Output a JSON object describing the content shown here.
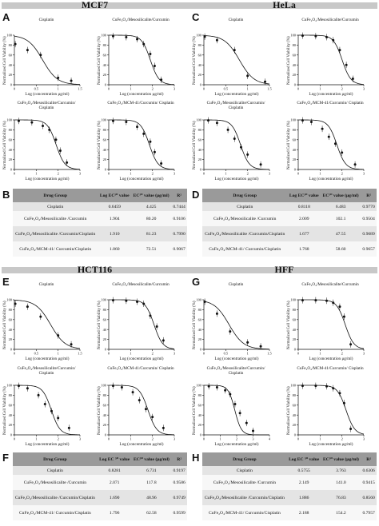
{
  "sections": [
    {
      "name": "MCF7",
      "letters": [
        "A",
        "B"
      ]
    },
    {
      "name": "HeLa",
      "letters": [
        "C",
        "D"
      ]
    },
    {
      "name": "HCT116",
      "letters": [
        "E",
        "F"
      ]
    },
    {
      "name": "HFF",
      "letters": [
        "G",
        "H"
      ]
    }
  ],
  "axis": {
    "ylabel": "Normalized Cell Viability (%)",
    "xlabel": "Log (concentration μg/ml)"
  },
  "tables": [
    {
      "headers": [
        "Drug Group",
        "Log EC⁵⁰ value",
        "EC⁵⁰ value (μg/ml)",
        "R²"
      ],
      "rows": [
        [
          "Cisplatin",
          "0.6459",
          "4.425",
          "0.7444"
        ],
        [
          "CuFe₂O₄/Mesosilicalite /Curcumin",
          "1.904",
          "80.20",
          "0.9106"
        ],
        [
          "CuFe₂O₄/Mesosilicalite /Curcumin/Cisplatin",
          "1.910",
          "81.23",
          "0.7990"
        ],
        [
          "CuFe₂O₄/MCM-41/ Curcumin/Cisplatin",
          "1.860",
          "72.51",
          "0.9067"
        ]
      ]
    },
    {
      "headers": [
        "Drug Group",
        "Log EC⁵⁰ value",
        "EC⁵⁰ value (μg/ml)",
        "R²"
      ],
      "rows": [
        [
          "Cisplatin",
          "0.8118",
          "6.483",
          "0.9770"
        ],
        [
          "CuFe₂O₄/Mesosilicalite /Curcumin",
          "2.009",
          "102.1",
          "0.9504"
        ],
        [
          "CuFe₂O₄/Mesosilicalite /Curcumin/Cisplatin",
          "1.677",
          "47.55",
          "0.9689"
        ],
        [
          "CuFe₂O₄/MCM-41/ Curcumin/Cisplatin",
          "1.768",
          "58.60",
          "0.9657"
        ]
      ]
    },
    {
      "headers": [
        "Drug Group",
        "Log EC ⁵⁰ value",
        "EC⁵⁰ value (μg/ml)",
        "R²"
      ],
      "rows": [
        [
          "Cisplatin",
          "0.8281",
          "6.731",
          "0.9197"
        ],
        [
          "CuFe₂O₄/Mesosilicalite /Curcumin",
          "2.071",
          "117.8",
          "0.9586"
        ],
        [
          "CuFe₂O₄/Mesosilicalite /Curcumin/Cisplatin",
          "1.690",
          "48.96",
          "0.9749"
        ],
        [
          "CuFe₂O₄/MCM-41/ Curcumin/Cisplatin",
          "1.796",
          "62.58",
          "0.9599"
        ]
      ]
    },
    {
      "headers": [
        "Drug Group",
        "Log EC ⁵⁰ value",
        "EC⁵⁰ value (μg/ml)",
        "R²"
      ],
      "rows": [
        [
          "Cisplatin",
          "0.5755",
          "3.763",
          "0.6306"
        ],
        [
          "CuFe₂O₄/Mesosilicalite /Curcumin",
          "2.149",
          "141.0",
          "0.9415"
        ],
        [
          "CuFe₂O₄/Mesosilicalite /Curcumin/Cisplatin",
          "1.886",
          "76.83",
          "0.8560"
        ],
        [
          "CuFe₂O₄/MCM-41/ Curcumin/Cisplatin",
          "2.188",
          "154.2",
          "0.7957"
        ]
      ]
    }
  ],
  "chart_data": [
    {
      "type": "scatter",
      "cell_line": "MCF7",
      "title": "Cisplatin",
      "log_ec50": 0.6459,
      "xlabel": "Log (concentration μg/ml)",
      "ylabel": "Normalized Cell Viability (%)",
      "xlim": [
        0,
        1.5
      ],
      "ylim": [
        0,
        100
      ],
      "xticks": [
        "0",
        "0.5",
        "1",
        "1.5"
      ],
      "yticks": [
        "0",
        "20",
        "40",
        "60",
        "80",
        "100"
      ],
      "x": [
        0.02,
        0.3,
        0.6,
        1.0,
        1.3
      ],
      "y": [
        82,
        70,
        60,
        14,
        8
      ]
    },
    {
      "type": "scatter",
      "cell_line": "MCF7",
      "title": "CuFe₂O₄/Mesosilicalite/Curcumin",
      "log_ec50": 1.904,
      "xlabel": "Log (concentration μg/ml)",
      "ylabel": "Normalized Cell Viability (%)",
      "xlim": [
        0,
        3
      ],
      "ylim": [
        0,
        100
      ],
      "xticks": [
        "0",
        "1",
        "2",
        "3"
      ],
      "yticks": [
        "0",
        "20",
        "40",
        "60",
        "80",
        "100"
      ],
      "x": [
        0.2,
        0.8,
        1.3,
        1.6,
        1.9,
        2.1,
        2.4
      ],
      "y": [
        98,
        96,
        92,
        82,
        62,
        38,
        10
      ]
    },
    {
      "type": "scatter",
      "cell_line": "MCF7",
      "title": "CuFe₂O₄/Mesosilicalite/Curcumin/ Cisplatin",
      "log_ec50": 1.91,
      "xlabel": "Log (concentration μg/ml)",
      "ylabel": "Normalized Cell Viability (%)",
      "xlim": [
        0,
        3
      ],
      "ylim": [
        0,
        100
      ],
      "xticks": [
        "0",
        "1",
        "2",
        "3"
      ],
      "yticks": [
        "0",
        "20",
        "40",
        "60",
        "80",
        "100"
      ],
      "x": [
        0.2,
        0.8,
        1.3,
        1.6,
        1.9,
        2.1,
        2.4
      ],
      "y": [
        98,
        95,
        88,
        80,
        60,
        38,
        14
      ]
    },
    {
      "type": "scatter",
      "cell_line": "MCF7",
      "title": "CuFe₂O₄/MCM-41/Curcumin/ Cisplatin",
      "log_ec50": 1.86,
      "xlabel": "Log (concentration μg/ml)",
      "ylabel": "Normalized Cell Viability (%)",
      "xlim": [
        0,
        3
      ],
      "ylim": [
        0,
        100
      ],
      "xticks": [
        "0",
        "1",
        "2",
        "3"
      ],
      "yticks": [
        "0",
        "20",
        "40",
        "60",
        "80",
        "100"
      ],
      "x": [
        0.2,
        0.8,
        1.3,
        1.6,
        1.9,
        2.1,
        2.4
      ],
      "y": [
        98,
        96,
        86,
        72,
        56,
        35,
        12
      ]
    },
    {
      "type": "scatter",
      "cell_line": "HeLa",
      "title": "Cisplatin",
      "log_ec50": 0.8118,
      "xlabel": "Log (concentration μg/ml)",
      "ylabel": "Normalized Cell Viability (%)",
      "xlim": [
        0,
        1.5
      ],
      "ylim": [
        0,
        100
      ],
      "xticks": [
        "0",
        "0.5",
        "1",
        "1.5"
      ],
      "yticks": [
        "0",
        "20",
        "40",
        "60",
        "80",
        "100"
      ],
      "x": [
        0.02,
        0.3,
        0.7,
        1.0,
        1.4
      ],
      "y": [
        97,
        90,
        70,
        18,
        6
      ]
    },
    {
      "type": "scatter",
      "cell_line": "HeLa",
      "title": "CuFe₂O₄/Mesosilicalite/Curcumin",
      "log_ec50": 2.009,
      "xlabel": "Log (concentration μg/ml)",
      "ylabel": "Normalized Cell Viability (%)",
      "xlim": [
        0,
        3
      ],
      "ylim": [
        0,
        100
      ],
      "xticks": [
        "0",
        "1",
        "2",
        "3"
      ],
      "yticks": [
        "0",
        "20",
        "40",
        "60",
        "80",
        "100"
      ],
      "x": [
        0.2,
        0.8,
        1.3,
        1.6,
        1.9,
        2.2,
        2.5
      ],
      "y": [
        99,
        98,
        96,
        90,
        70,
        40,
        12
      ]
    },
    {
      "type": "scatter",
      "cell_line": "HeLa",
      "title": "CuFe₂O₄/Mesosilicalite/Curcumin/ Cisplatin",
      "log_ec50": 1.677,
      "xlabel": "Log (concentration μg/ml)",
      "ylabel": "Normalized Cell Viability (%)",
      "xlim": [
        0,
        3
      ],
      "ylim": [
        0,
        100
      ],
      "xticks": [
        "0",
        "1",
        "2",
        "3"
      ],
      "yticks": [
        "0",
        "20",
        "40",
        "60",
        "80",
        "100"
      ],
      "x": [
        0.2,
        0.6,
        1.1,
        1.4,
        1.7,
        2.0,
        2.6
      ],
      "y": [
        99,
        94,
        80,
        62,
        45,
        30,
        10
      ]
    },
    {
      "type": "scatter",
      "cell_line": "HeLa",
      "title": "CuFe₂O₄/MCM-41/Curcumin/ Cisplatin",
      "log_ec50": 1.768,
      "xlabel": "Log (concentration μg/ml)",
      "ylabel": "Normalized Cell Viability (%)",
      "xlim": [
        0,
        3
      ],
      "ylim": [
        0,
        100
      ],
      "xticks": [
        "0",
        "1",
        "2",
        "3"
      ],
      "yticks": [
        "0",
        "20",
        "40",
        "60",
        "80",
        "100"
      ],
      "x": [
        0.2,
        0.6,
        1.1,
        1.4,
        1.7,
        2.0,
        2.6
      ],
      "y": [
        99,
        96,
        82,
        66,
        52,
        34,
        10
      ]
    },
    {
      "type": "scatter",
      "cell_line": "HCT116",
      "title": "Cisplatin",
      "log_ec50": 0.8281,
      "xlabel": "Log (concentration μg/ml)",
      "ylabel": "Normalized Cell Viability (%)",
      "xlim": [
        0,
        1.5
      ],
      "ylim": [
        0,
        100
      ],
      "xticks": [
        "0",
        "0.5",
        "1",
        "1.5"
      ],
      "yticks": [
        "0",
        "20",
        "40",
        "60",
        "80",
        "100"
      ],
      "x": [
        0.02,
        0.3,
        0.6,
        1.0,
        1.3
      ],
      "y": [
        92,
        86,
        66,
        28,
        10
      ]
    },
    {
      "type": "scatter",
      "cell_line": "HCT116",
      "title": "CuFe₂O₄/Mesosilicalite/Curcumin",
      "log_ec50": 2.071,
      "xlabel": "Log (concentration μg/ml)",
      "ylabel": "Normalized Cell Viability (%)",
      "xlim": [
        0,
        3
      ],
      "ylim": [
        0,
        100
      ],
      "xticks": [
        "0",
        "1",
        "2",
        "3"
      ],
      "yticks": [
        "0",
        "20",
        "40",
        "60",
        "80",
        "100"
      ],
      "x": [
        0.2,
        0.8,
        1.3,
        1.6,
        1.9,
        2.2,
        2.5
      ],
      "y": [
        99,
        98,
        96,
        92,
        68,
        46,
        18
      ]
    },
    {
      "type": "scatter",
      "cell_line": "HCT116",
      "title": "CuFe₂O₄/Mesosilicalite/Curcumin/ Cisplatin",
      "log_ec50": 1.69,
      "xlabel": "Log (concentration μg/ml)",
      "ylabel": "Normalized Cell Viability (%)",
      "xlim": [
        0,
        3
      ],
      "ylim": [
        0,
        100
      ],
      "xticks": [
        "0",
        "1",
        "2",
        "3"
      ],
      "yticks": [
        "0",
        "20",
        "40",
        "60",
        "80",
        "100"
      ],
      "x": [
        0.2,
        0.6,
        1.1,
        1.4,
        1.7,
        2.0,
        2.5
      ],
      "y": [
        99,
        94,
        80,
        62,
        48,
        34,
        14
      ]
    },
    {
      "type": "scatter",
      "cell_line": "HCT116",
      "title": "CuFe₂O₄/MCM-41/Curcumin/ Cisplatin",
      "log_ec50": 1.796,
      "xlabel": "Log (concentration μg/ml)",
      "ylabel": "Normalized Cell Viability (%)",
      "xlim": [
        0,
        3
      ],
      "ylim": [
        0,
        100
      ],
      "xticks": [
        "0",
        "1",
        "2",
        "3"
      ],
      "yticks": [
        "0",
        "20",
        "40",
        "60",
        "80",
        "100"
      ],
      "x": [
        0.2,
        0.6,
        1.1,
        1.4,
        1.7,
        2.0,
        2.5
      ],
      "y": [
        99,
        96,
        86,
        70,
        52,
        36,
        14
      ]
    },
    {
      "type": "scatter",
      "cell_line": "HFF",
      "title": "Cisplatin",
      "log_ec50": 0.5755,
      "xlabel": "Log (concentration μg/ml)",
      "ylabel": "Normalized Cell Viability (%)",
      "xlim": [
        0,
        1.5
      ],
      "ylim": [
        0,
        100
      ],
      "xticks": [
        "0",
        "0.5",
        "1",
        "1.5"
      ],
      "yticks": [
        "0",
        "20",
        "40",
        "60",
        "80",
        "100"
      ],
      "x": [
        0.02,
        0.3,
        0.6,
        1.0,
        1.3
      ],
      "y": [
        96,
        72,
        36,
        14,
        6
      ]
    },
    {
      "type": "scatter",
      "cell_line": "HFF",
      "title": "CuFe₂O₄/Mesosilicalite/Curcumin",
      "log_ec50": 2.149,
      "xlabel": "Log (concentration μg/ml)",
      "ylabel": "Normalized Cell Viability (%)",
      "xlim": [
        0,
        3
      ],
      "ylim": [
        0,
        100
      ],
      "xticks": [
        "0",
        "1",
        "2",
        "3"
      ],
      "yticks": [
        "0",
        "20",
        "40",
        "60",
        "80",
        "100"
      ],
      "x": [
        0.2,
        0.8,
        1.3,
        1.6,
        1.9,
        2.1,
        2.4
      ],
      "y": [
        99,
        99,
        98,
        94,
        86,
        66,
        10
      ]
    },
    {
      "type": "scatter",
      "cell_line": "HFF",
      "title": "CuFe₂O₄/Mesosilicalite/Curcumin/ Cisplatin",
      "log_ec50": 1.886,
      "xlabel": "Log (concentration μg/ml)",
      "ylabel": "Normalized Cell Viability (%)",
      "xlim": [
        0,
        4
      ],
      "ylim": [
        0,
        100
      ],
      "xticks": [
        "0",
        "1",
        "2",
        "3",
        "4"
      ],
      "yticks": [
        "0",
        "20",
        "40",
        "60",
        "80",
        "100"
      ],
      "x": [
        0.3,
        0.8,
        1.3,
        1.6,
        1.9,
        2.2,
        2.6,
        3.0
      ],
      "y": [
        98,
        96,
        90,
        82,
        62,
        44,
        24,
        8
      ]
    },
    {
      "type": "scatter",
      "cell_line": "HFF",
      "title": "CuFe₂O₄/MCM-41/Curcumin/ Cisplatin",
      "log_ec50": 2.188,
      "xlabel": "Log (concentration μg/ml)",
      "ylabel": "Normalized Cell Viability (%)",
      "xlim": [
        0,
        3
      ],
      "ylim": [
        0,
        100
      ],
      "xticks": [
        "0",
        "1",
        "2",
        "3"
      ],
      "yticks": [
        "0",
        "20",
        "40",
        "60",
        "80",
        "100"
      ],
      "x": [
        0.2,
        0.8,
        1.3,
        1.6,
        1.9,
        2.1,
        2.4
      ],
      "y": [
        99,
        99,
        98,
        94,
        84,
        64,
        12
      ]
    }
  ]
}
